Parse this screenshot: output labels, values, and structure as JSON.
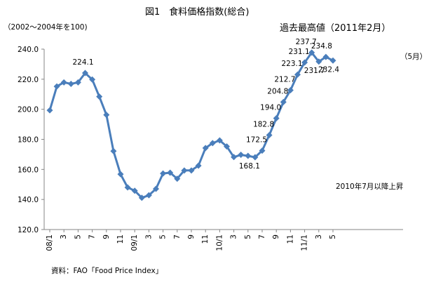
{
  "chart_data": {
    "type": "line",
    "title": "図1　食料価格指数(総合)",
    "ylabel": "（2002～2004年を100)",
    "source": "資料：FAO「Food Price Index」",
    "ylim": [
      120,
      240
    ],
    "yticks": [
      "120.0",
      "140.0",
      "160.0",
      "180.0",
      "200.0",
      "220.0",
      "240.0"
    ],
    "xtick_labels": [
      "08/1",
      "3",
      "5",
      "7",
      "9",
      "11",
      "09/1",
      "3",
      "5",
      "7",
      "9",
      "11",
      "10/1",
      "3",
      "5",
      "7",
      "9",
      "11",
      "11/1",
      "3",
      "5"
    ],
    "series": [
      {
        "name": "",
        "color": "#4a7ebb",
        "x": [
          "2008-01",
          "2008-02",
          "2008-03",
          "2008-04",
          "2008-05",
          "2008-06",
          "2008-07",
          "2008-08",
          "2008-09",
          "2008-10",
          "2008-11",
          "2008-12",
          "2009-01",
          "2009-02",
          "2009-03",
          "2009-04",
          "2009-05",
          "2009-06",
          "2009-07",
          "2009-08",
          "2009-09",
          "2009-10",
          "2009-11",
          "2009-12",
          "2010-01",
          "2010-02",
          "2010-03",
          "2010-04",
          "2010-05",
          "2010-06",
          "2010-07",
          "2010-08",
          "2010-09",
          "2010-10",
          "2010-11",
          "2010-12",
          "2011-01",
          "2011-02",
          "2011-03",
          "2011-04",
          "2011-05"
        ],
        "values": [
          199.3,
          215.2,
          217.9,
          216.9,
          217.9,
          224.1,
          219.8,
          208.4,
          196.3,
          172.2,
          156.8,
          148.0,
          145.8,
          141.1,
          142.8,
          147.1,
          157.3,
          157.8,
          153.8,
          159.3,
          159.3,
          162.5,
          174.2,
          177.5,
          179.3,
          175.3,
          168.2,
          169.7,
          169.0,
          168.1,
          172.5,
          182.8,
          194.0,
          204.8,
          212.7,
          223.1,
          231.1,
          237.7,
          231.7,
          234.8,
          232.4
        ]
      }
    ],
    "data_labels": [
      {
        "x": "2008-06",
        "text": "224.1"
      },
      {
        "x": "2010-06",
        "text": "168.1"
      },
      {
        "x": "2010-07",
        "text": "172.5"
      },
      {
        "x": "2010-08",
        "text": "182.8"
      },
      {
        "x": "2010-09",
        "text": "194.0"
      },
      {
        "x": "2010-10",
        "text": "204.8"
      },
      {
        "x": "2010-11",
        "text": "212.7"
      },
      {
        "x": "2010-12",
        "text": "223.1"
      },
      {
        "x": "2011-01",
        "text": "231.1"
      },
      {
        "x": "2011-02",
        "text": "237.7"
      },
      {
        "x": "2011-03",
        "text": "231.7"
      },
      {
        "x": "2011-04",
        "text": "234.8"
      },
      {
        "x": "2011-05",
        "text": "232.4"
      }
    ],
    "annotations": {
      "peak": "過去最高値（2011年2月）",
      "latest": "（5月）",
      "trend": "2010年7月以降上昇"
    },
    "grid": false
  }
}
